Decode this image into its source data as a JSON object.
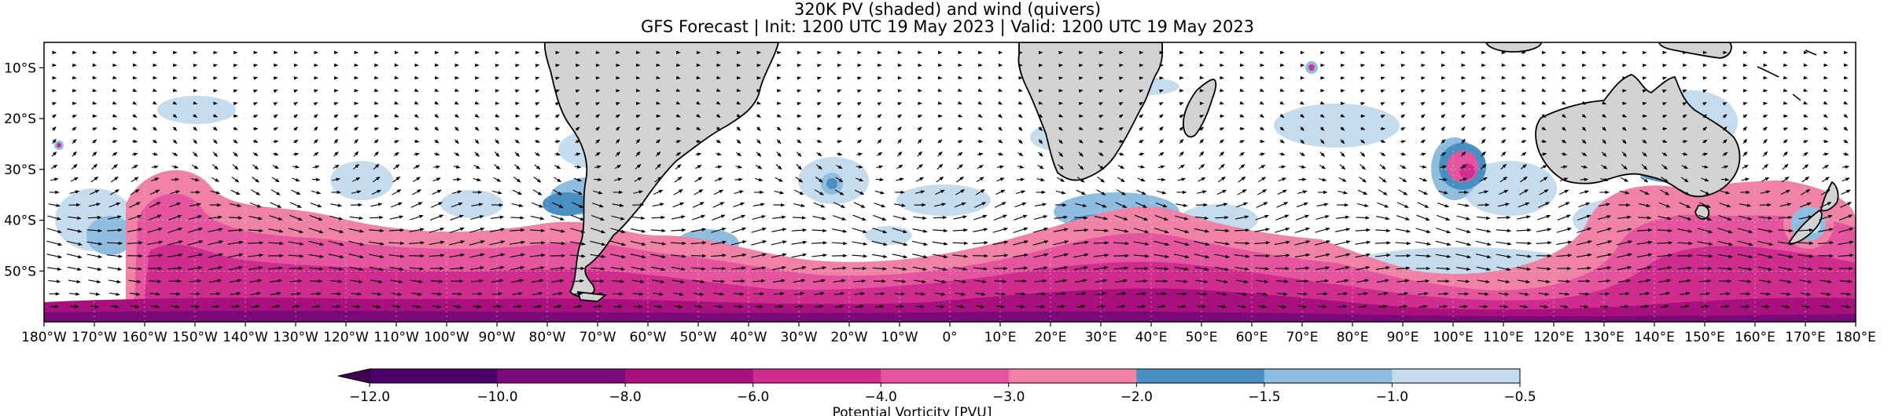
{
  "title": {
    "line1": "320K PV (shaded) and wind (quivers)",
    "line2": "GFS Forecast | Init: 1200 UTC 19 May 2023 | Valid: 1200 UTC 19 May 2023"
  },
  "map": {
    "projection": "PlateCarree",
    "lon_range": [
      -180,
      180
    ],
    "lat_range": [
      -60,
      -5
    ],
    "x_ticks": [
      {
        "lon": -180,
        "label": "180°W"
      },
      {
        "lon": -170,
        "label": "170°W"
      },
      {
        "lon": -160,
        "label": "160°W"
      },
      {
        "lon": -150,
        "label": "150°W"
      },
      {
        "lon": -140,
        "label": "140°W"
      },
      {
        "lon": -130,
        "label": "130°W"
      },
      {
        "lon": -120,
        "label": "120°W"
      },
      {
        "lon": -110,
        "label": "110°W"
      },
      {
        "lon": -100,
        "label": "100°W"
      },
      {
        "lon": -90,
        "label": "90°W"
      },
      {
        "lon": -80,
        "label": "80°W"
      },
      {
        "lon": -70,
        "label": "70°W"
      },
      {
        "lon": -60,
        "label": "60°W"
      },
      {
        "lon": -50,
        "label": "50°W"
      },
      {
        "lon": -40,
        "label": "40°W"
      },
      {
        "lon": -30,
        "label": "30°W"
      },
      {
        "lon": -20,
        "label": "20°W"
      },
      {
        "lon": -10,
        "label": "10°W"
      },
      {
        "lon": 0,
        "label": "0°"
      },
      {
        "lon": 10,
        "label": "10°E"
      },
      {
        "lon": 20,
        "label": "20°E"
      },
      {
        "lon": 30,
        "label": "30°E"
      },
      {
        "lon": 40,
        "label": "40°E"
      },
      {
        "lon": 50,
        "label": "50°E"
      },
      {
        "lon": 60,
        "label": "60°E"
      },
      {
        "lon": 70,
        "label": "70°E"
      },
      {
        "lon": 80,
        "label": "80°E"
      },
      {
        "lon": 90,
        "label": "90°E"
      },
      {
        "lon": 100,
        "label": "100°E"
      },
      {
        "lon": 110,
        "label": "110°E"
      },
      {
        "lon": 120,
        "label": "120°E"
      },
      {
        "lon": 130,
        "label": "130°E"
      },
      {
        "lon": 140,
        "label": "140°E"
      },
      {
        "lon": 150,
        "label": "150°E"
      },
      {
        "lon": 160,
        "label": "160°E"
      },
      {
        "lon": 170,
        "label": "170°E"
      },
      {
        "lon": 180,
        "label": "180°E"
      }
    ],
    "y_ticks": [
      {
        "lat": -10,
        "label": "10°S"
      },
      {
        "lat": -20,
        "label": "20°S"
      },
      {
        "lat": -30,
        "label": "30°S"
      },
      {
        "lat": -40,
        "label": "40°S"
      },
      {
        "lat": -50,
        "label": "50°S"
      }
    ],
    "colors": {
      "land": "#d3d3d3",
      "coast": "#000000",
      "quiver": "#000000",
      "grid": "#cccccc"
    }
  },
  "colorbar": {
    "label": "Potential Vorticity [PVU]",
    "extend": "min",
    "levels": [
      -12.0,
      -10.0,
      -8.0,
      -6.0,
      -4.0,
      -3.0,
      -2.0,
      -1.5,
      -1.0,
      -0.5
    ],
    "tick_labels": [
      "−12.0",
      "−10.0",
      "−8.0",
      "−6.0",
      "−4.0",
      "−3.0",
      "−2.0",
      "−1.5",
      "−1.0",
      "−0.5"
    ],
    "under_color": "#3f0050",
    "colors": [
      "#4b0069",
      "#7a0a7a",
      "#a8107e",
      "#cf2c8f",
      "#e5559f",
      "#f082a8",
      "#4a8fc2",
      "#8ebde0",
      "#c5dcef"
    ]
  }
}
